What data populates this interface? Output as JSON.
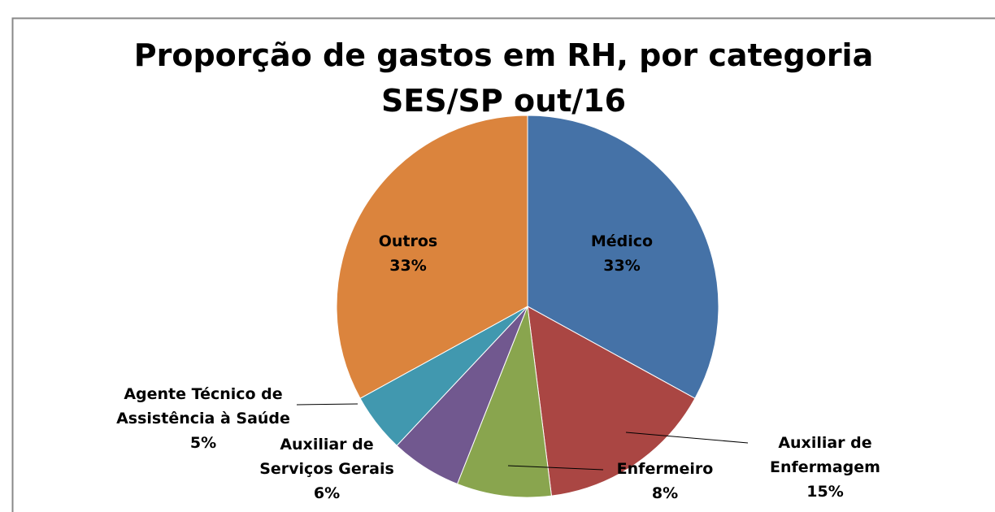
{
  "chart_data": {
    "type": "pie",
    "title": "Proporção de gastos em RH, por categoria",
    "subtitle": "SES/SP out/16",
    "categories": [
      "Médico",
      "Auxiliar de Enfermagem",
      "Enfermeiro",
      "Auxiliar de Serviços Gerais",
      "Agente Técnico de Assistência à Saúde",
      "Outros"
    ],
    "values": [
      33,
      15,
      8,
      6,
      5,
      33
    ],
    "value_labels": [
      "33%",
      "15%",
      "8%",
      "6%",
      "5%",
      "33%"
    ],
    "colors": [
      "#4572a7",
      "#aa4643",
      "#89a54e",
      "#71588f",
      "#4198af",
      "#db843d"
    ]
  }
}
